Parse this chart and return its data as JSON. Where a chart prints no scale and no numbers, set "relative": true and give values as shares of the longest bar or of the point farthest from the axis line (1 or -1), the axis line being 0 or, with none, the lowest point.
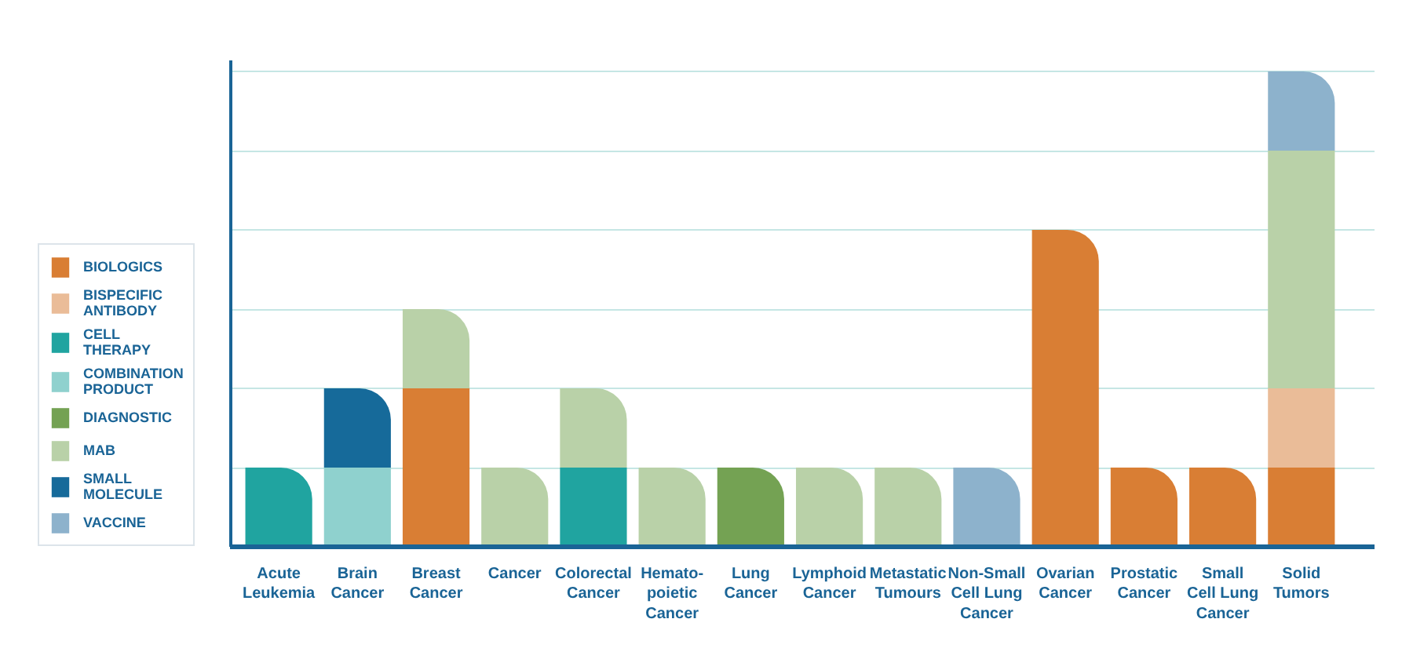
{
  "chart_data": {
    "type": "bar",
    "stacked": true,
    "relative": true,
    "grid": "y",
    "legend": "left",
    "categories": [
      "Acute\nLeukemia",
      "Brain\nCancer",
      "Breast\nCancer",
      "Cancer",
      "Colorectal\nCancer",
      "Hemato-\npoietic\nCancer",
      "Lung\nCancer",
      "Lymphoid\nCancer",
      "Metastatic\nTumours",
      "Non-Small\nCell Lung\nCancer",
      "Ovarian\nCancer",
      "Prostatic\nCancer",
      "Small\nCell Lung\nCancer",
      "Solid\nTumors"
    ],
    "series": [
      {
        "name": "BIOLOGICS",
        "color": "#d97e34",
        "values": [
          null,
          null,
          0.3333,
          null,
          null,
          null,
          null,
          null,
          null,
          null,
          0.6667,
          0.1667,
          0.1667,
          0.1667
        ]
      },
      {
        "name": "BISPECIFIC\nANTIBODY",
        "color": "#eabc98",
        "values": [
          null,
          null,
          null,
          null,
          null,
          null,
          null,
          null,
          null,
          null,
          null,
          null,
          null,
          0.1667
        ]
      },
      {
        "name": "CELL\nTHERAPY",
        "color": "#20a4a0",
        "values": [
          0.1667,
          null,
          null,
          null,
          0.1667,
          null,
          null,
          null,
          null,
          null,
          null,
          null,
          null,
          null
        ]
      },
      {
        "name": "COMBINATION\nPRODUCT",
        "color": "#8fd1ce",
        "values": [
          null,
          0.1667,
          null,
          null,
          null,
          null,
          null,
          null,
          null,
          null,
          null,
          null,
          null,
          null
        ]
      },
      {
        "name": "DIAGNOSTIC",
        "color": "#74a253",
        "values": [
          null,
          null,
          null,
          null,
          null,
          null,
          0.1667,
          null,
          null,
          null,
          null,
          null,
          null,
          null
        ]
      },
      {
        "name": "MAB",
        "color": "#b9d1a8",
        "values": [
          null,
          null,
          0.1667,
          0.1667,
          0.1667,
          0.1667,
          null,
          0.1667,
          0.1667,
          null,
          null,
          null,
          null,
          0.5
        ]
      },
      {
        "name": "SMALL\nMOLECULE",
        "color": "#166a9a",
        "values": [
          null,
          0.1667,
          null,
          null,
          null,
          null,
          null,
          null,
          null,
          null,
          null,
          null,
          null,
          null
        ]
      },
      {
        "name": "VACCINE",
        "color": "#8db2cc",
        "values": [
          null,
          null,
          null,
          null,
          null,
          null,
          null,
          null,
          null,
          0.1667,
          null,
          null,
          null,
          0.1666
        ]
      }
    ]
  }
}
